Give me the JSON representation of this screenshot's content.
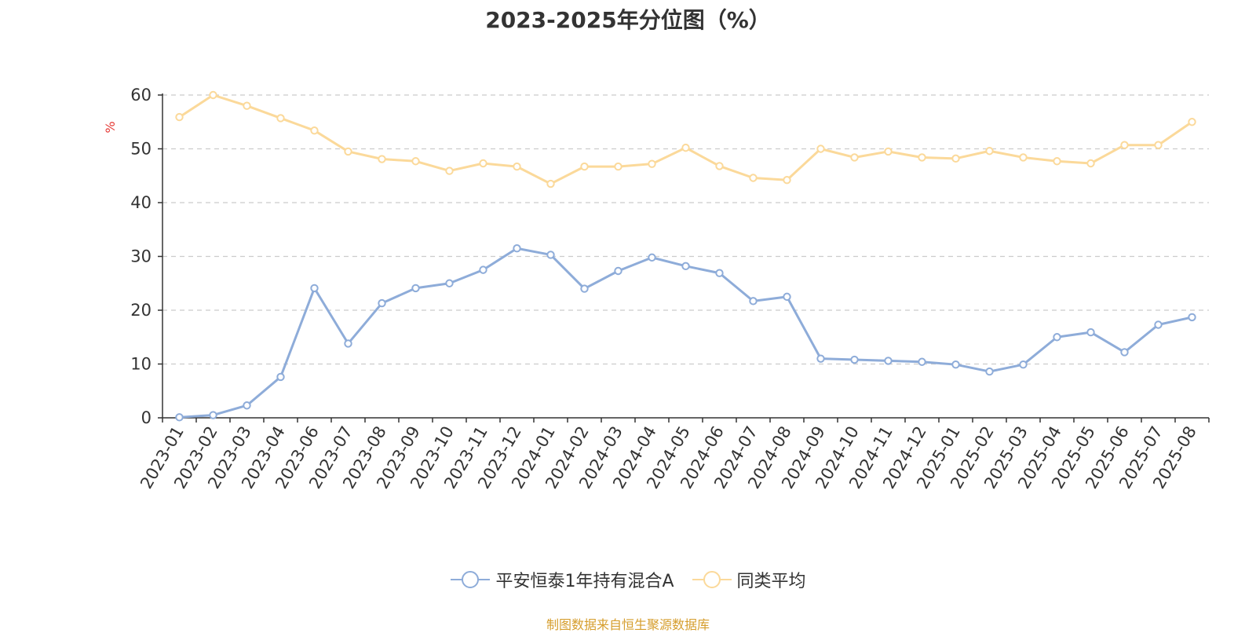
{
  "chart_data": {
    "type": "line",
    "title": "2023-2025年分位图（%）",
    "ylabel": "%",
    "xlabel": "",
    "ylim": [
      0,
      60
    ],
    "yticks": [
      0,
      10,
      20,
      30,
      40,
      50,
      60
    ],
    "grid": true,
    "legend_position": "bottom",
    "categories": [
      "2023-01",
      "2023-02",
      "2023-03",
      "2023-04",
      "2023-06",
      "2023-07",
      "2023-08",
      "2023-09",
      "2023-10",
      "2023-11",
      "2023-12",
      "2024-01",
      "2024-02",
      "2024-03",
      "2024-04",
      "2024-05",
      "2024-06",
      "2024-07",
      "2024-08",
      "2024-09",
      "2024-10",
      "2024-11",
      "2024-12",
      "2025-01",
      "2025-02",
      "2025-03",
      "2025-04",
      "2025-05",
      "2025-06",
      "2025-07",
      "2025-08"
    ],
    "series": [
      {
        "name": "平安恒泰1年持有混合A",
        "color": "#8eacd9",
        "values": [
          0.1,
          0.5,
          2.3,
          7.6,
          24.1,
          13.8,
          21.3,
          24.1,
          25.0,
          27.5,
          31.5,
          30.3,
          24.0,
          27.3,
          29.8,
          28.2,
          26.9,
          21.7,
          22.5,
          11.0,
          10.8,
          10.6,
          10.4,
          9.9,
          8.6,
          9.9,
          15.0,
          15.9,
          12.2,
          17.3,
          18.7
        ]
      },
      {
        "name": "同类平均",
        "color": "#fbd99a",
        "values": [
          55.9,
          60.0,
          58.0,
          55.7,
          53.4,
          49.5,
          48.1,
          47.7,
          45.9,
          47.3,
          46.7,
          43.5,
          46.7,
          46.7,
          47.2,
          50.2,
          46.8,
          44.6,
          44.2,
          50.0,
          48.4,
          49.5,
          48.4,
          48.2,
          49.6,
          48.4,
          47.7,
          47.3,
          50.7,
          50.7,
          55.0
        ]
      }
    ]
  },
  "source_note": "制图数据来自恒生聚源数据库"
}
